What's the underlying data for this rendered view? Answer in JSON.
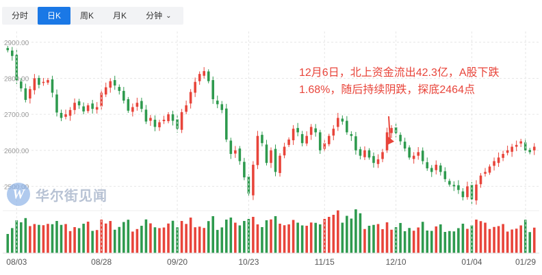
{
  "tabs": [
    {
      "label": "分时",
      "active": false
    },
    {
      "label": "日K",
      "active": true
    },
    {
      "label": "周K",
      "active": false
    },
    {
      "label": "月K",
      "active": false
    },
    {
      "label": "分钟",
      "active": false,
      "icon": "chevron-down-icon"
    }
  ],
  "watermark": {
    "text": "华尔街见闻",
    "logo_letter": "W"
  },
  "annotation": {
    "line1": "12月6日，北上资金流出42.3亿，A股下跌",
    "line2": "1.68%，随后持续阴跌，探底2464点"
  },
  "colors": {
    "up": "#e8443a",
    "down": "#2e9a4e",
    "accent": "#1a78e6",
    "grid": "#e6e6e6",
    "axis_text": "#999999"
  },
  "chart_data": {
    "type": "candlestick",
    "title": "",
    "ylim": [
      2440,
      2930
    ],
    "y_ticks": [
      "2900.00",
      "2800.00",
      "2700.00",
      "2600.00",
      "2500.00"
    ],
    "x_ticks": [
      "08/03",
      "08/28",
      "09/20",
      "10/23",
      "11/15",
      "12/10",
      "01/04",
      "01/29"
    ],
    "grid": true,
    "closes": [
      2878,
      2862,
      2795,
      2772,
      2740,
      2770,
      2800,
      2782,
      2790,
      2795,
      2760,
      2705,
      2690,
      2700,
      2712,
      2732,
      2725,
      2708,
      2725,
      2715,
      2720,
      2760,
      2775,
      2792,
      2780,
      2765,
      2738,
      2710,
      2720,
      2732,
      2715,
      2680,
      2690,
      2665,
      2678,
      2685,
      2700,
      2682,
      2660,
      2706,
      2725,
      2762,
      2790,
      2812,
      2820,
      2792,
      2742,
      2728,
      2712,
      2630,
      2590,
      2600,
      2570,
      2525,
      2480,
      2560,
      2640,
      2620,
      2565,
      2600,
      2540,
      2585,
      2610,
      2630,
      2660,
      2650,
      2620,
      2640,
      2665,
      2650,
      2600,
      2620,
      2640,
      2660,
      2690,
      2680,
      2650,
      2640,
      2600,
      2585,
      2600,
      2580,
      2565,
      2575,
      2595,
      2650,
      2662,
      2648,
      2625,
      2605,
      2580,
      2585,
      2595,
      2570,
      2550,
      2540,
      2560,
      2540,
      2520,
      2505,
      2500,
      2490,
      2470,
      2500,
      2464,
      2505,
      2530,
      2540,
      2555,
      2570,
      2580,
      2590,
      2600,
      2610,
      2615,
      2625,
      2600,
      2595,
      2610
    ],
    "annotated_arrow_target": "12/06",
    "volume_series": "shown in lower pane, colored by up/down day"
  }
}
